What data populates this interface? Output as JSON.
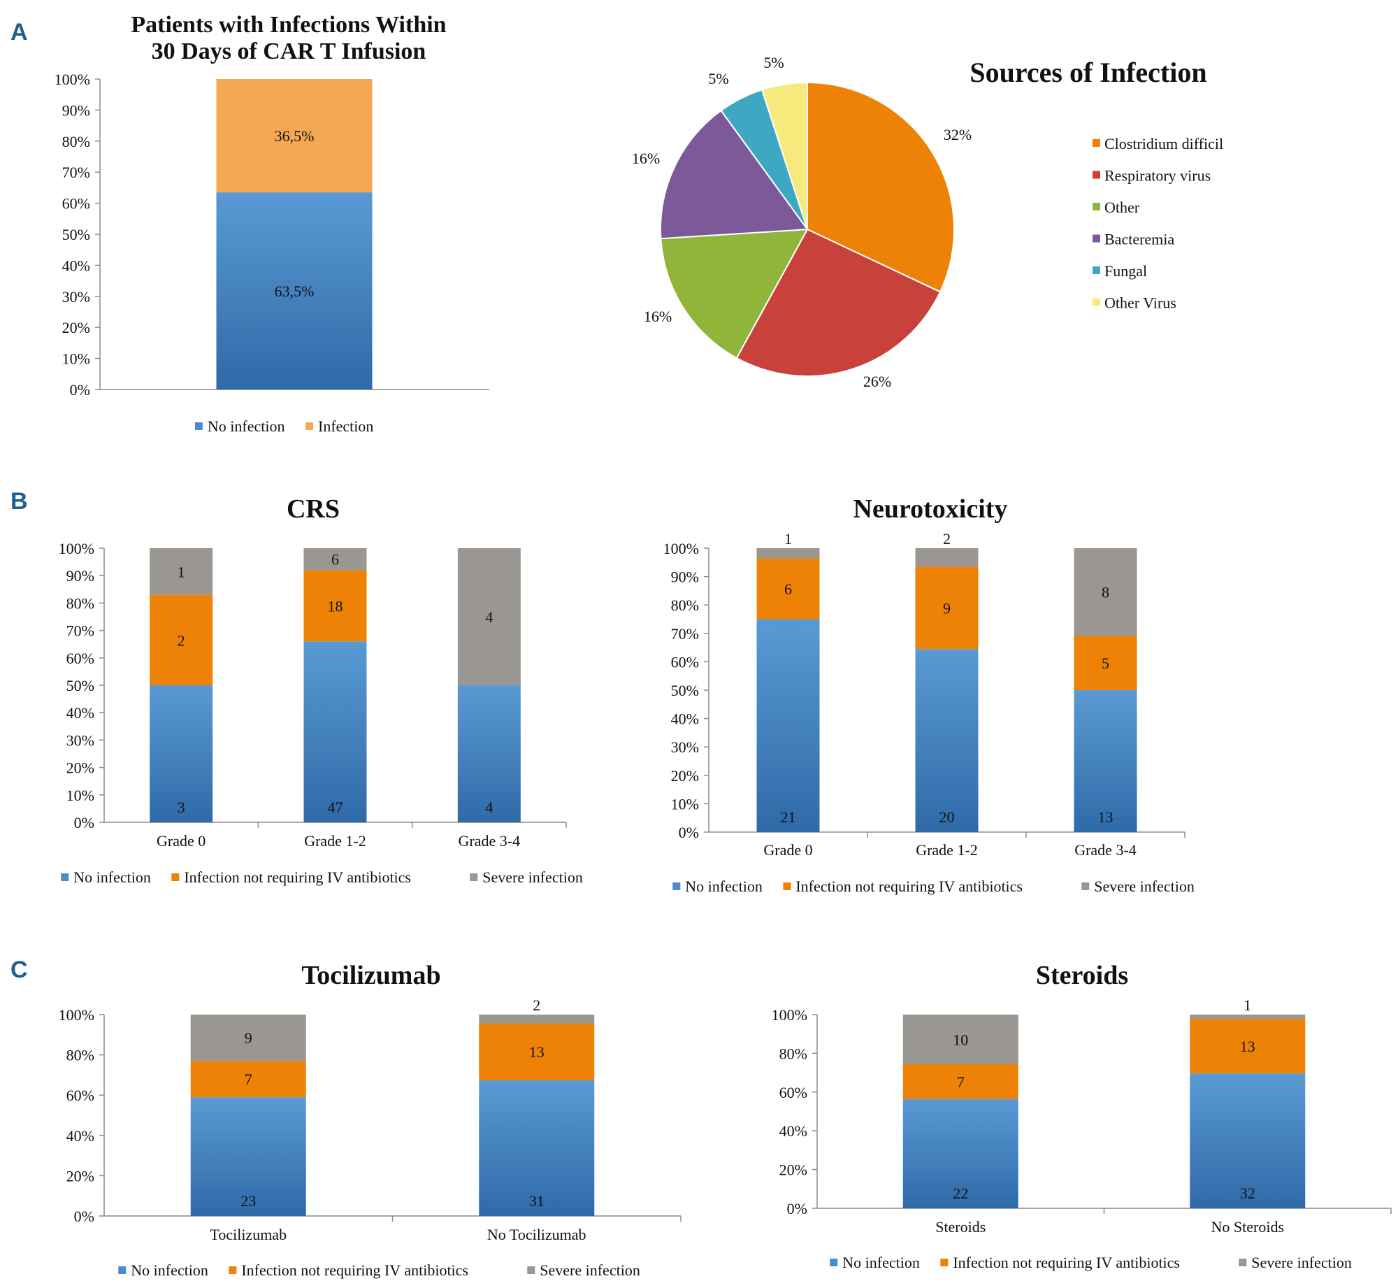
{
  "panel_labels": [
    "A",
    "B",
    "C"
  ],
  "colors": {
    "blue": "#4a8bc8",
    "blue_dark": "#2f6aa8",
    "orange": "#ee8206",
    "light_orange": "#f4a853",
    "gray": "#9a9792",
    "axis": "#8c8c8c",
    "text": "#111111"
  },
  "chart_data": [
    {
      "id": "infection-bar",
      "type": "bar",
      "stacked": true,
      "title_lines": [
        "Patients with Infections Within",
        "30 Days of CAR T Infusion"
      ],
      "categories": [
        ""
      ],
      "yticks": [
        "0%",
        "10%",
        "20%",
        "30%",
        "40%",
        "50%",
        "60%",
        "70%",
        "80%",
        "90%",
        "100%"
      ],
      "ylim": [
        0,
        100
      ],
      "series": [
        {
          "name": "No infection",
          "color": "#4a8bc8",
          "values": [
            63.5
          ],
          "labels": [
            "63,5%"
          ]
        },
        {
          "name": "Infection",
          "color": "#f4a853",
          "values": [
            36.5
          ],
          "labels": [
            "36,5%"
          ]
        }
      ],
      "legend": "bottom"
    },
    {
      "id": "sources-pie",
      "type": "pie",
      "title": "Sources of Infection",
      "slices": [
        {
          "name": "Clostridium difficile",
          "legend_text": "Clostridium difficil",
          "value": 32,
          "label": "32%",
          "color": "#ee8206"
        },
        {
          "name": "Respiratory virus",
          "legend_text": "Respiratory virus",
          "value": 26,
          "label": "26%",
          "color": "#c8413a"
        },
        {
          "name": "Other",
          "legend_text": "Other",
          "value": 16,
          "label": "16%",
          "color": "#8fb53a"
        },
        {
          "name": "Bacteremia",
          "legend_text": "Bacteremia",
          "value": 16,
          "label": "16%",
          "color": "#7c5a9a"
        },
        {
          "name": "Fungal",
          "legend_text": "Fungal",
          "value": 5,
          "label": "5%",
          "color": "#3ea8c3"
        },
        {
          "name": "Other Virus",
          "legend_text": "Other Virus",
          "value": 5,
          "label": "5%",
          "color": "#f7ea7c"
        }
      ],
      "legend": "right"
    },
    {
      "id": "crs",
      "type": "bar",
      "stacked": true,
      "title": "CRS",
      "categories": [
        "Grade 0",
        "Grade 1-2",
        "Grade 3-4"
      ],
      "yticks": [
        "0%",
        "10%",
        "20%",
        "30%",
        "40%",
        "50%",
        "60%",
        "70%",
        "80%",
        "90%",
        "100%"
      ],
      "ylim": [
        0,
        100
      ],
      "series": [
        {
          "name": "No infection",
          "color": "#4a8bc8",
          "values": [
            50,
            66,
            50
          ],
          "labels": [
            "3",
            "47",
            "4"
          ]
        },
        {
          "name": "Infection not requiring IV antibiotics",
          "color": "#ee8206",
          "values": [
            33,
            26,
            0
          ],
          "labels": [
            "2",
            "18",
            ""
          ]
        },
        {
          "name": "Severe infection",
          "color": "#9a9792",
          "values": [
            17,
            8,
            50
          ],
          "labels": [
            "1",
            "6",
            "4"
          ]
        }
      ],
      "legend": "bottom"
    },
    {
      "id": "neurotoxicity",
      "type": "bar",
      "stacked": true,
      "title": "Neurotoxicity",
      "categories": [
        "Grade 0",
        "Grade 1-2",
        "Grade 3-4"
      ],
      "yticks": [
        "0%",
        "10%",
        "20%",
        "30%",
        "40%",
        "50%",
        "60%",
        "70%",
        "80%",
        "90%",
        "100%"
      ],
      "ylim": [
        0,
        100
      ],
      "series": [
        {
          "name": "No infection",
          "color": "#4a8bc8",
          "values": [
            75,
            64.5,
            50
          ],
          "labels": [
            "21",
            "20",
            "13"
          ]
        },
        {
          "name": "Infection not requiring IV antibiotics",
          "color": "#ee8206",
          "values": [
            21.4,
            29,
            19.2
          ],
          "labels": [
            "6",
            "9",
            "5"
          ]
        },
        {
          "name": "Severe infection",
          "color": "#9a9792",
          "values": [
            3.6,
            6.5,
            30.8
          ],
          "labels": [
            "1",
            "2",
            "8"
          ]
        }
      ],
      "legend": "bottom"
    },
    {
      "id": "tocilizumab",
      "type": "bar",
      "stacked": true,
      "title": "Tocilizumab",
      "categories": [
        "Tocilizumab",
        "No Tocilizumab"
      ],
      "yticks": [
        "0%",
        "20%",
        "40%",
        "60%",
        "80%",
        "100%"
      ],
      "ylim": [
        0,
        100
      ],
      "series": [
        {
          "name": "No infection",
          "color": "#4a8bc8",
          "values": [
            59,
            67.4
          ],
          "labels": [
            "23",
            "31"
          ]
        },
        {
          "name": "Infection not requiring IV antibiotics",
          "color": "#ee8206",
          "values": [
            18,
            28.3
          ],
          "labels": [
            "7",
            "13"
          ]
        },
        {
          "name": "Severe infection",
          "color": "#9a9792",
          "values": [
            23,
            4.3
          ],
          "labels": [
            "9",
            "2"
          ]
        }
      ],
      "legend": "bottom"
    },
    {
      "id": "steroids",
      "type": "bar",
      "stacked": true,
      "title": "Steroids",
      "categories": [
        "Steroids",
        "No Steroids"
      ],
      "yticks": [
        "0%",
        "20%",
        "40%",
        "60%",
        "80%",
        "100%"
      ],
      "ylim": [
        0,
        100
      ],
      "series": [
        {
          "name": "No infection",
          "color": "#4a8bc8",
          "values": [
            56.4,
            69.6
          ],
          "labels": [
            "22",
            "32"
          ]
        },
        {
          "name": "Infection not requiring IV antibiotics",
          "color": "#ee8206",
          "values": [
            18,
            28.2
          ],
          "labels": [
            "7",
            "13"
          ]
        },
        {
          "name": "Severe infection",
          "color": "#9a9792",
          "values": [
            25.6,
            2.2
          ],
          "labels": [
            "10",
            "1"
          ]
        }
      ],
      "legend": "bottom"
    }
  ]
}
